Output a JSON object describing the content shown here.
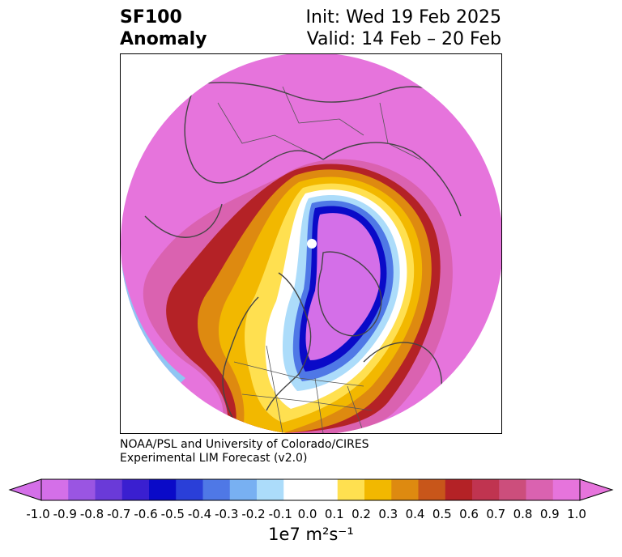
{
  "title": {
    "left_line1": "SF100",
    "left_line2": "Anomaly",
    "right_line1": "Init: Wed 19 Feb 2025",
    "right_line2": "Valid: 14 Feb – 20 Feb"
  },
  "credit": {
    "line1": "NOAA/PSL and University of Colorado/CIRES",
    "line2": "Experimental LIM Forecast (v2.0)"
  },
  "map": {
    "projection": "north-polar-stereographic",
    "field": "SF100 Anomaly",
    "pattern": "negative anomaly centered over Greenland/Canadian Arctic, positive anomaly elsewhere",
    "min_shown": -0.7,
    "max_shown": 1.0
  },
  "colorbar": {
    "extend": "both",
    "ticks": [
      "-1.0",
      "-0.9",
      "-0.8",
      "-0.7",
      "-0.6",
      "-0.5",
      "-0.4",
      "-0.3",
      "-0.2",
      "-0.1",
      "0.0",
      "0.1",
      "0.2",
      "0.3",
      "0.4",
      "0.5",
      "0.6",
      "0.7",
      "0.8",
      "0.9",
      "1.0"
    ],
    "colors": [
      "#d46fe8",
      "#9a55e2",
      "#6a3ad8",
      "#3a1fd0",
      "#0a0ac8",
      "#2a3fd8",
      "#4f78e6",
      "#78b0f2",
      "#acdcfa",
      "#ffffff",
      "#ffffff",
      "#ffe050",
      "#f2b800",
      "#de8a10",
      "#c8561a",
      "#b42226",
      "#c03450",
      "#cc4e7c",
      "#da62b0",
      "#e674dc"
    ],
    "units": "1e7 m²s⁻¹"
  }
}
